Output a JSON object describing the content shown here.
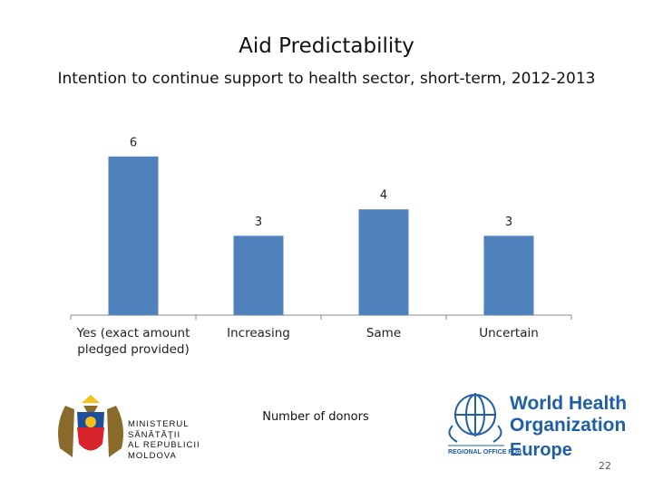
{
  "chart_data": {
    "type": "bar",
    "title": "Aid Predictability",
    "subtitle": "Intention to continue support to health sector, short-term, 2012-2013",
    "categories": [
      "Yes (exact amount pledged provided)",
      "Increasing",
      "Same",
      "Uncertain"
    ],
    "values": [
      6,
      3,
      4,
      3
    ],
    "color": "#4f81bd",
    "x_label": "Number of donors"
  },
  "logos": {
    "ministry": [
      "MINISTERUL",
      "SĂNĂTĂŢII",
      "AL REPUBLICII",
      "MOLDOVA"
    ],
    "who_name": [
      "World Health",
      "Organization"
    ],
    "who_office": "REGIONAL OFFICE FOR",
    "who_region": "Europe"
  },
  "page_number": "22"
}
